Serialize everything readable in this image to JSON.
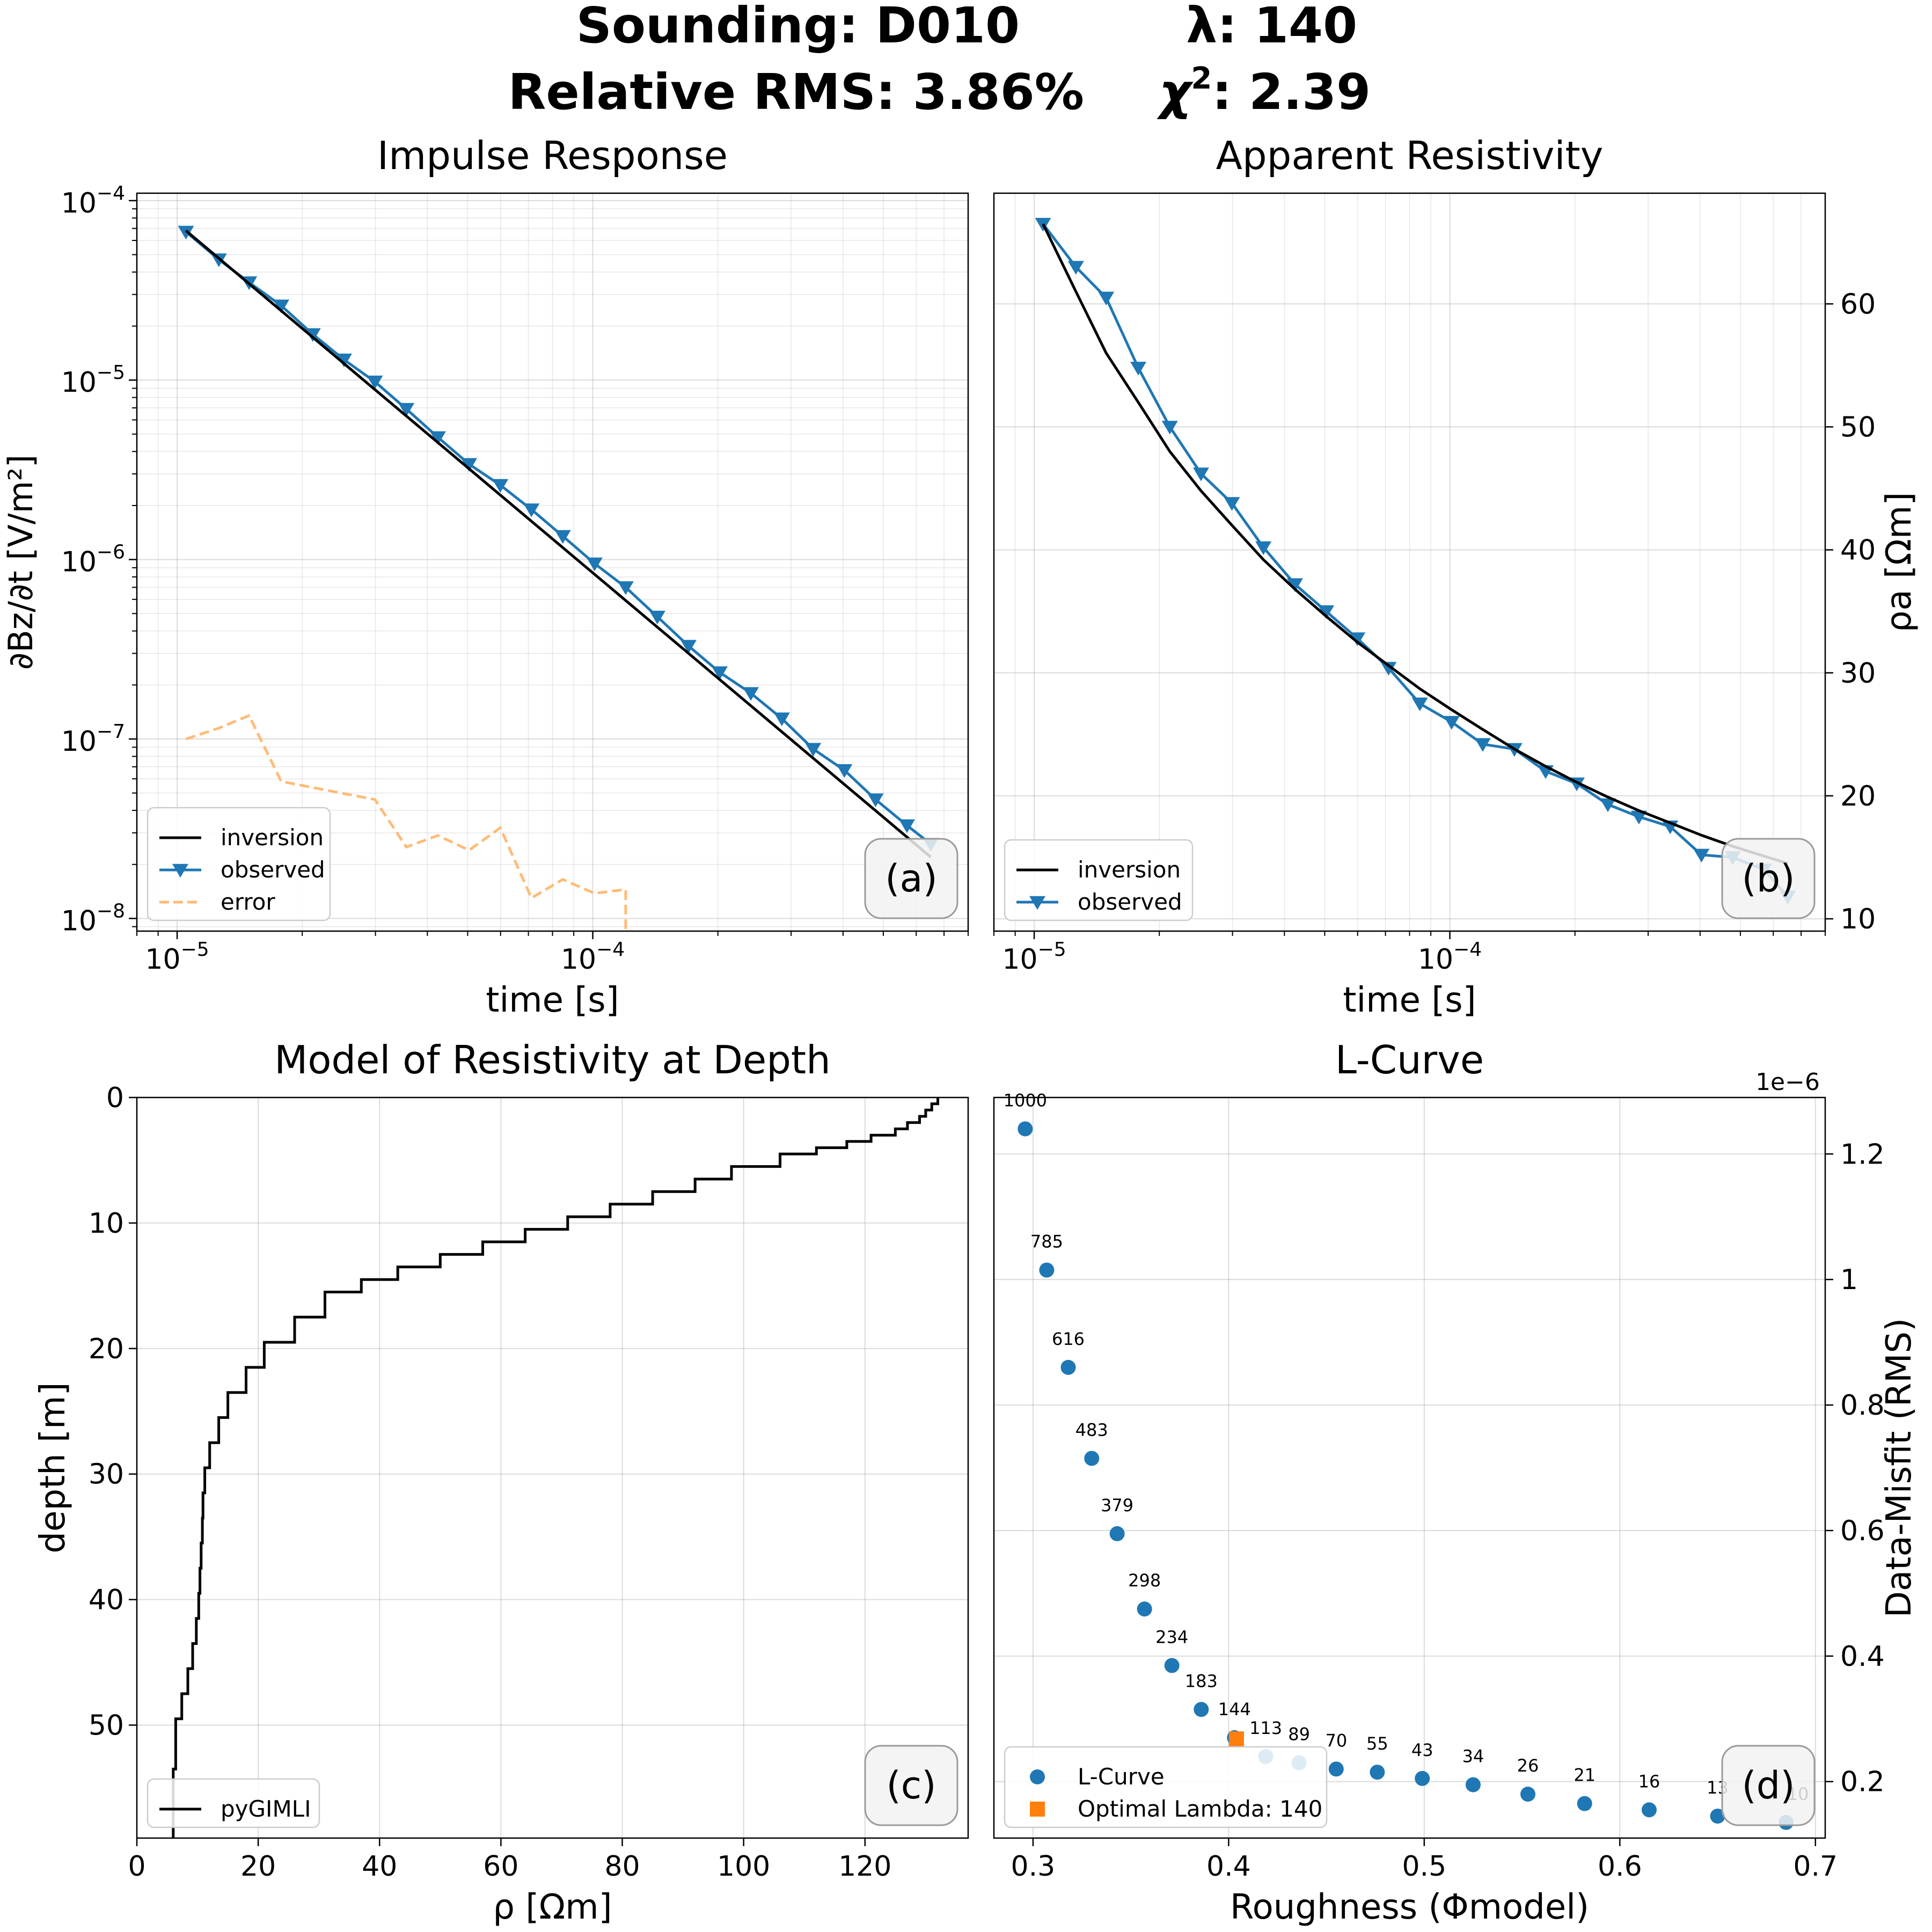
{
  "header": {
    "sounding_label": "Sounding: D010",
    "lambda_label": "λ: 140",
    "rms_label": "Relative RMS: 3.86%",
    "chi_prefix": "χ",
    "chi_sup": "2",
    "chi_value": ": 2.39"
  },
  "colors": {
    "observed": "#1f77b4",
    "inversion": "#000000",
    "error": "#ffbb78",
    "optimal": "#ff7f0e",
    "grid": "#b0b0b0"
  },
  "chart_data": [
    {
      "type": "line",
      "title": "Impulse Response",
      "panel_label": "(a)",
      "xlabel": "time [s]",
      "ylabel": "∂Bz/∂t [V/m²]",
      "xscale": "log",
      "yscale": "log",
      "xlim": [
        8e-06,
        0.0008
      ],
      "ylim": [
        8.5e-09,
        0.00011
      ],
      "x_ticks": [
        {
          "value": 1e-05,
          "base": "10",
          "exp": "−5"
        },
        {
          "value": 0.0001,
          "base": "10",
          "exp": "−4"
        }
      ],
      "y_ticks": [
        {
          "value": 1e-08,
          "base": "10",
          "exp": "−8"
        },
        {
          "value": 1e-07,
          "base": "10",
          "exp": "−7"
        },
        {
          "value": 1e-06,
          "base": "10",
          "exp": "−6"
        },
        {
          "value": 1e-05,
          "base": "10",
          "exp": "−5"
        },
        {
          "value": 0.0001,
          "base": "10",
          "exp": "−4"
        }
      ],
      "grid": "both (major and minor)",
      "legend_position": "lower-left",
      "legend": [
        "inversion",
        "observed",
        "error"
      ],
      "series": [
        {
          "name": "inversion",
          "style": "line",
          "color": "#000000",
          "x": [
            1.05e-05,
            0.00065
          ],
          "y": [
            6.8e-05,
            2.2e-08
          ]
        },
        {
          "name": "observed",
          "style": "line-triangle",
          "color": "#1f77b4",
          "x": [
            1.05e-05,
            1.26e-05,
            1.49e-05,
            1.78e-05,
            2.12e-05,
            2.52e-05,
            2.99e-05,
            3.56e-05,
            4.24e-05,
            5.04e-05,
            5.99e-05,
            7.12e-05,
            8.47e-05,
            0.000101,
            0.00012,
            0.000143,
            0.00017,
            0.000202,
            0.00024,
            0.000285,
            0.000339,
            0.000403,
            0.000479,
            0.00057,
            0.00065
          ],
          "y": [
            6.7e-05,
            4.7e-05,
            3.5e-05,
            2.6e-05,
            1.8e-05,
            1.3e-05,
            9.8e-06,
            6.9e-06,
            4.8e-06,
            3.4e-06,
            2.6e-06,
            1.9e-06,
            1.35e-06,
            9.5e-07,
            7e-07,
            4.8e-07,
            3.3e-07,
            2.35e-07,
            1.8e-07,
            1.3e-07,
            8.8e-08,
            6.7e-08,
            4.6e-08,
            3.3e-08,
            2.6e-08
          ]
        },
        {
          "name": "error",
          "style": "dashed",
          "color": "#ffbb78",
          "x": [
            1.05e-05,
            1.26e-05,
            1.49e-05,
            1.78e-05,
            2.99e-05,
            3.56e-05,
            4.24e-05,
            5.04e-05,
            5.99e-05,
            7.12e-05,
            8.47e-05,
            0.000101,
            0.00012,
            0.00012
          ],
          "y": [
            1e-07,
            1.15e-07,
            1.35e-07,
            5.8e-08,
            4.6e-08,
            2.5e-08,
            2.9e-08,
            2.4e-08,
            3.2e-08,
            1.3e-08,
            1.65e-08,
            1.38e-08,
            1.45e-08,
            8.5e-09
          ]
        }
      ]
    },
    {
      "type": "line",
      "title": "Apparent Resistivity",
      "panel_label": "(b)",
      "xlabel": "time [s]",
      "ylabel": "ρa [Ωm]",
      "xscale": "log",
      "xlim": [
        8e-06,
        0.0008
      ],
      "ylim": [
        9,
        69
      ],
      "x_ticks": [
        {
          "value": 1e-05,
          "base": "10",
          "exp": "−5"
        },
        {
          "value": 0.0001,
          "base": "10",
          "exp": "−4"
        }
      ],
      "y_ticks": [
        10,
        20,
        30,
        40,
        50,
        60
      ],
      "y_axis_side": "right",
      "grid": "both",
      "legend_position": "lower-left",
      "legend": [
        "inversion",
        "observed"
      ],
      "series": [
        {
          "name": "inversion",
          "style": "line",
          "color": "#000000",
          "x": [
            1.05e-05,
            1.26e-05,
            1.49e-05,
            1.78e-05,
            2.12e-05,
            2.52e-05,
            2.99e-05,
            3.56e-05,
            4.24e-05,
            5.04e-05,
            5.99e-05,
            7.12e-05,
            8.47e-05,
            0.000101,
            0.00012,
            0.000143,
            0.00017,
            0.000202,
            0.00024,
            0.000285,
            0.000339,
            0.000403,
            0.000479,
            0.00057,
            0.00065
          ],
          "y": [
            66.5,
            61.0,
            56.0,
            52.0,
            48.0,
            44.8,
            42.0,
            39.2,
            36.8,
            34.6,
            32.5,
            30.6,
            28.7,
            27.0,
            25.4,
            23.8,
            22.4,
            21.1,
            19.9,
            18.8,
            17.8,
            16.8,
            15.9,
            15.1,
            14.5
          ]
        },
        {
          "name": "observed",
          "style": "line-triangle",
          "color": "#1f77b4",
          "x": [
            1.05e-05,
            1.26e-05,
            1.49e-05,
            1.78e-05,
            2.12e-05,
            2.52e-05,
            2.99e-05,
            3.56e-05,
            4.24e-05,
            5.04e-05,
            5.99e-05,
            7.12e-05,
            8.47e-05,
            0.000101,
            0.00012,
            0.000143,
            0.00017,
            0.000202,
            0.00024,
            0.000285,
            0.000339,
            0.000403,
            0.000479,
            0.00057,
            0.00065
          ],
          "y": [
            66.5,
            63.0,
            60.5,
            54.8,
            50.0,
            46.2,
            43.8,
            40.2,
            37.2,
            35.0,
            32.8,
            30.4,
            27.5,
            26.0,
            24.2,
            23.8,
            22.0,
            21.0,
            19.3,
            18.3,
            17.5,
            15.2,
            15.0,
            14.0,
            11.8
          ]
        }
      ]
    },
    {
      "type": "step",
      "title": "Model of Resistivity at Depth",
      "panel_label": "(c)",
      "xlabel": "ρ [Ωm]",
      "ylabel": "depth [m]",
      "xlim": [
        0,
        137
      ],
      "ylim": [
        59,
        0
      ],
      "x_ticks": [
        0,
        20,
        40,
        60,
        80,
        100,
        120
      ],
      "y_ticks": [
        0,
        10,
        20,
        30,
        40,
        50
      ],
      "grid": "both",
      "legend_position": "lower-left",
      "legend": [
        "pyGIMLI"
      ],
      "series": [
        {
          "name": "pyGIMLI",
          "color": "#000000",
          "layers_top_depth": [
            0,
            0.5,
            1,
            1.5,
            2,
            2.5,
            3,
            3.5,
            4,
            4.5,
            5.5,
            6.5,
            7.5,
            8.5,
            9.5,
            10.5,
            11.5,
            12.5,
            13.5,
            14.5,
            15.5,
            17.5,
            19.5,
            21.5,
            23.5,
            25.5,
            27.5,
            29.5,
            31.5,
            33.5,
            35.5,
            37.5,
            39.5,
            41.5,
            43.5,
            45.5,
            47.5,
            49.5,
            53.5
          ],
          "resistivity": [
            132,
            131,
            130,
            129,
            127,
            125,
            121,
            117,
            112,
            106,
            98,
            92,
            85,
            78,
            71,
            64,
            57,
            50,
            43,
            37,
            31,
            26,
            21,
            18,
            15,
            13.5,
            12,
            11.2,
            10.9,
            10.8,
            10.6,
            10.4,
            10.2,
            9.8,
            9.2,
            8.4,
            7.4,
            6.4,
            6
          ]
        }
      ]
    },
    {
      "type": "scatter",
      "title": "L-Curve",
      "panel_label": "(d)",
      "xlabel": "Roughness (Φmodel)",
      "ylabel": "Data-Misfit (RMS)",
      "y_offset_label": "1e−6",
      "xlim": [
        0.28,
        0.705
      ],
      "ylim": [
        0.11,
        1.29
      ],
      "x_ticks": [
        0.3,
        0.4,
        0.5,
        0.6,
        0.7
      ],
      "y_ticks": [
        0.2,
        0.4,
        0.6,
        0.8,
        1.0,
        1.2
      ],
      "y_axis_side": "right",
      "grid": "both",
      "legend_position": "lower-left",
      "legend": [
        "L-Curve",
        "Optimal Lambda: 140"
      ],
      "series": [
        {
          "name": "L-Curve",
          "color": "#1f77b4",
          "x": [
            0.296,
            0.307,
            0.318,
            0.33,
            0.343,
            0.357,
            0.371,
            0.386,
            0.403,
            0.419,
            0.436,
            0.455,
            0.476,
            0.499,
            0.525,
            0.553,
            0.582,
            0.615,
            0.65,
            0.685
          ],
          "y": [
            1.24,
            1.015,
            0.86,
            0.715,
            0.595,
            0.475,
            0.385,
            0.315,
            0.27,
            0.24,
            0.23,
            0.22,
            0.215,
            0.205,
            0.195,
            0.18,
            0.165,
            0.155,
            0.145,
            0.135
          ],
          "labels": [
            "1000",
            "785",
            "616",
            "483",
            "379",
            "298",
            "234",
            "183",
            "144",
            "113",
            "89",
            "70",
            "55",
            "43",
            "34",
            "26",
            "21",
            "16",
            "13",
            "10"
          ]
        },
        {
          "name": "Optimal Lambda: 140",
          "color": "#ff7f0e",
          "marker": "square",
          "x": [
            0.404
          ],
          "y": [
            0.268
          ]
        }
      ]
    }
  ]
}
